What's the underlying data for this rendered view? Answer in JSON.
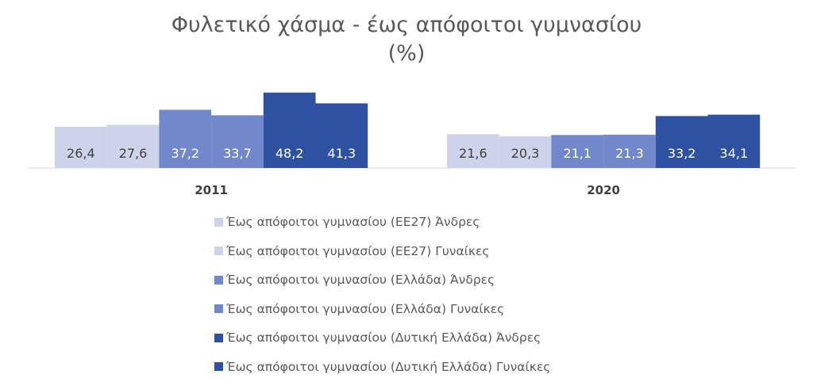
{
  "chart_data": {
    "type": "bar",
    "title_line1": "Φυλετικό χάσμα - έως απόφοιτοι γυμνασίου",
    "title_line2": "(%)",
    "categories": [
      "2011",
      "2020"
    ],
    "series": [
      {
        "name": "Έως απόφοιτοι γυμνασίου (ΕΕ27) Άνδρες",
        "color": "#cdd3ea",
        "values": [
          26.4,
          21.6
        ],
        "labels": [
          "26,4",
          "21,6"
        ]
      },
      {
        "name": "Έως απόφοιτοι γυμνασίου (ΕΕ27) Γυναίκες",
        "color": "#cdd3ea",
        "values": [
          27.6,
          20.3
        ],
        "labels": [
          "27,6",
          "20,3"
        ]
      },
      {
        "name": "Έως απόφοιτοι γυμνασίου (Ελλάδα) Άνδρες",
        "color": "#7189cc",
        "values": [
          37.2,
          21.1
        ],
        "labels": [
          "37,2",
          "21,1"
        ]
      },
      {
        "name": "Έως απόφοιτοι γυμνασίου (Ελλάδα) Γυναίκες",
        "color": "#7189cc",
        "values": [
          33.7,
          21.3
        ],
        "labels": [
          "33,7",
          "21,3"
        ]
      },
      {
        "name": "Έως απόφοιτοι γυμνασίου (Δυτική Ελλάδα) Άνδρες",
        "color": "#2e51a2",
        "values": [
          48.2,
          33.2
        ],
        "labels": [
          "48,2",
          "33,2"
        ]
      },
      {
        "name": "Έως απόφοιτοι γυμνασίου (Δυτική Ελλάδα) Γυναίκες",
        "color": "#2e51a2",
        "values": [
          41.3,
          34.1
        ],
        "labels": [
          "41,3",
          "34,1"
        ]
      }
    ],
    "ylim": [
      0,
      55
    ],
    "grid": false,
    "legend_position": "bottom"
  }
}
